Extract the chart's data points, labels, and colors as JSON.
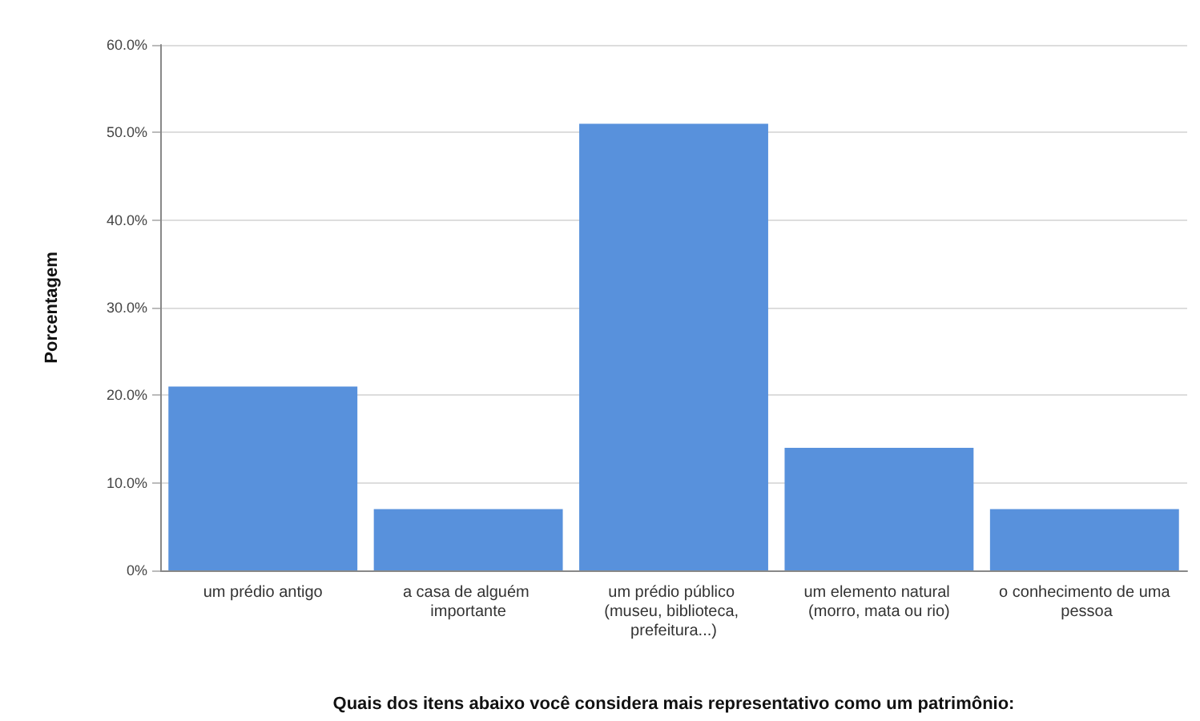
{
  "chart_data": {
    "type": "bar",
    "xlabel": "Quais dos itens abaixo você considera mais representativo como um patrimônio:",
    "ylabel": "Porcentagem",
    "categories": [
      "um prédio antigo",
      "a casa de alguém importante",
      "um prédio público (museu, biblioteca, prefeitura...)",
      "um elemento natural (morro, mata ou rio)",
      "o conhecimento de uma pessoa"
    ],
    "values": [
      21,
      7,
      51,
      14,
      7
    ],
    "color": "#5891dc",
    "ylim": [
      0,
      60
    ],
    "yticks": [
      {
        "value": 0,
        "label": "0%"
      },
      {
        "value": 10,
        "label": "10.0%"
      },
      {
        "value": 20,
        "label": "20.0%"
      },
      {
        "value": 30,
        "label": "30.0%"
      },
      {
        "value": 40,
        "label": "40.0%"
      },
      {
        "value": 50,
        "label": "50.0%"
      },
      {
        "value": 60,
        "label": "60.0%"
      }
    ],
    "grid": "y"
  }
}
